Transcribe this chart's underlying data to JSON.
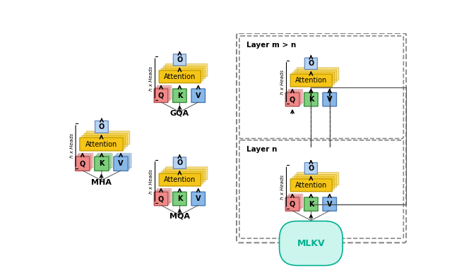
{
  "bg_color": "#ffffff",
  "attention_color": "#f5c518",
  "attention_alpha_shadow": 0.45,
  "q_color": "#f08888",
  "q_edge": "#b05050",
  "k_color": "#7dcf7d",
  "k_edge": "#3a8a3a",
  "v_color": "#88b8e8",
  "v_edge": "#4a7ab0",
  "o_color": "#b8d4f5",
  "o_edge": "#7090c0",
  "attn_edge": "#c8a000",
  "dashed_color": "#888888",
  "mlkv_color": "#00b090",
  "mlkv_bg": "#ccf5ee",
  "labels": {
    "mha": "MHA",
    "gqa": "GQA",
    "mqa": "MQA",
    "mlkv": "MLKV",
    "layer_m": "Layer m > n",
    "layer_n": "Layer n",
    "h_heads": "h x Heads",
    "attention": "Attention",
    "Q": "Q",
    "K": "K",
    "V": "V",
    "O": "O"
  }
}
